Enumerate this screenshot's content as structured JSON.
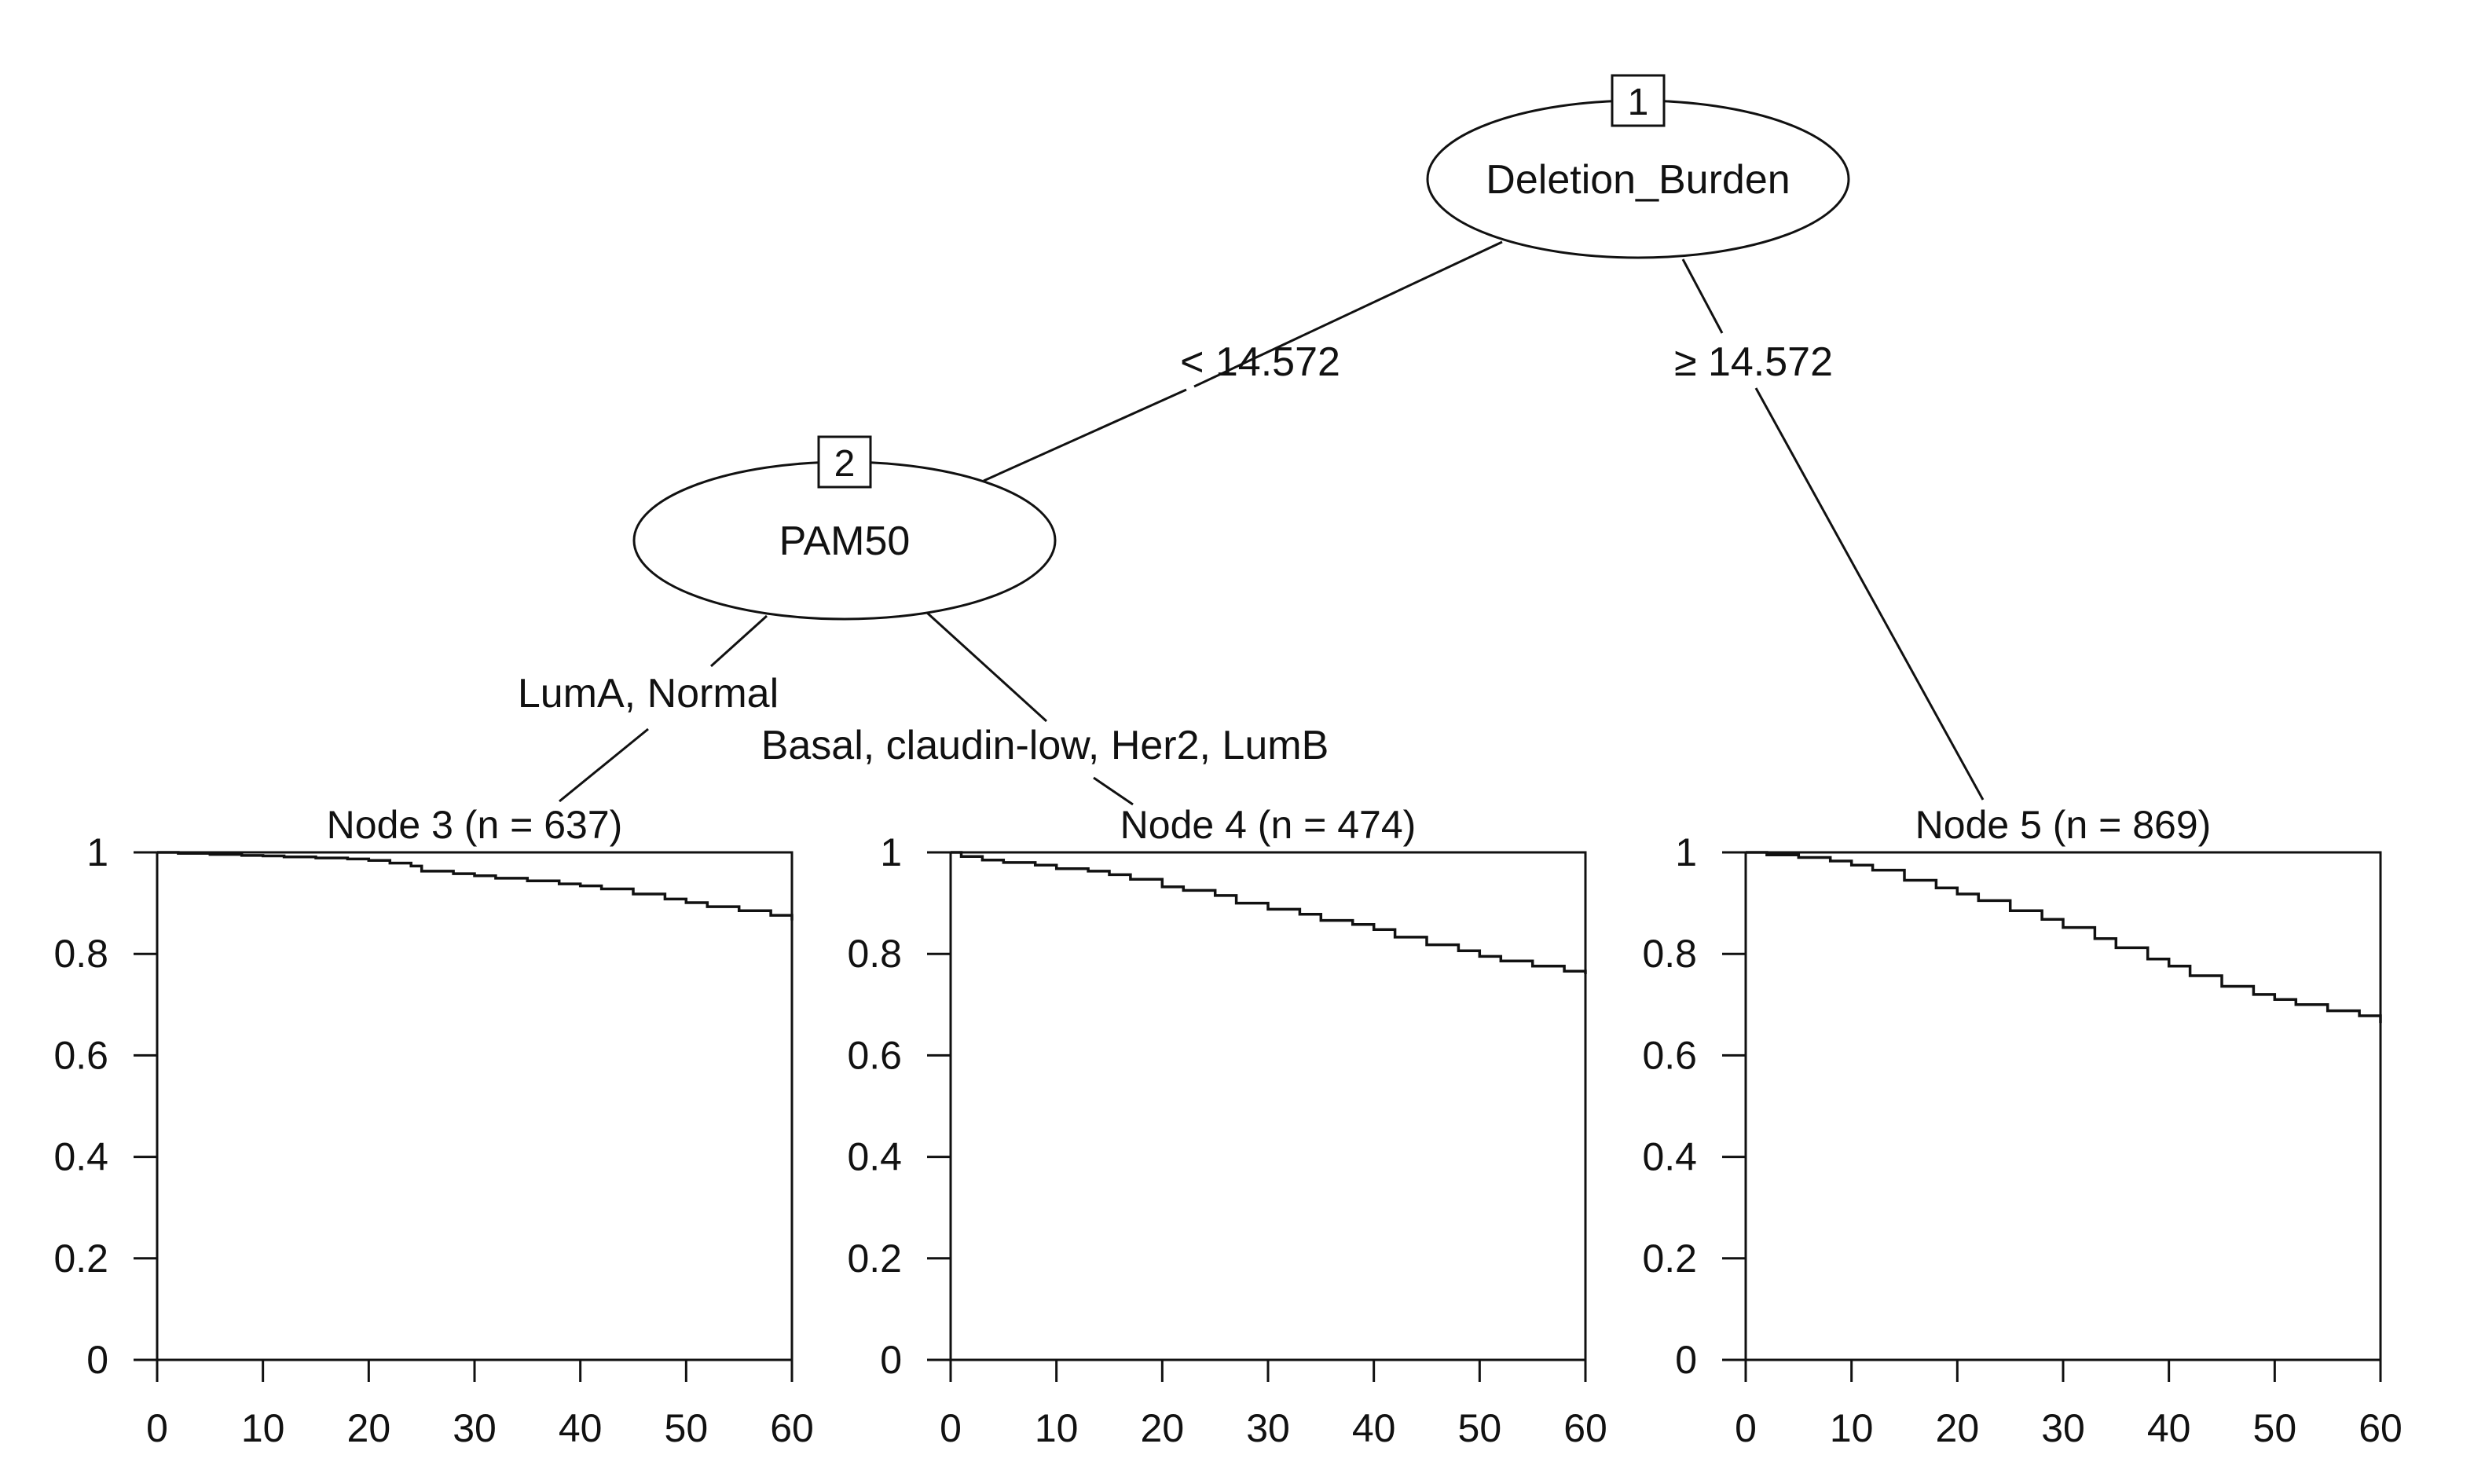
{
  "tree": {
    "nodes": [
      {
        "id": "1",
        "label": "Deletion_Burden"
      },
      {
        "id": "2",
        "label": "PAM50"
      }
    ],
    "edges": [
      {
        "from": "1",
        "to": "2",
        "label": "< 14.572"
      },
      {
        "from": "1",
        "to": "5",
        "label": "≥ 14.572"
      },
      {
        "from": "2",
        "to": "3",
        "label": "LumA, Normal"
      },
      {
        "from": "2",
        "to": "4",
        "label": "Basal, claudin-low, Her2, LumB"
      }
    ]
  },
  "chart_data": [
    {
      "type": "line",
      "title": "Node 3 (n = 637)",
      "xlim": [
        0,
        60
      ],
      "ylim": [
        0,
        1
      ],
      "xticks": [
        0,
        10,
        20,
        30,
        40,
        50,
        60
      ],
      "yticks": [
        0,
        0.2,
        0.4,
        0.6,
        0.8,
        1
      ],
      "ytick_labels": [
        "0",
        "0.2",
        "0.4",
        "0.6",
        "0.8",
        "1"
      ],
      "x": [
        0,
        2,
        5,
        8,
        10,
        12,
        15,
        18,
        20,
        22,
        24,
        25,
        28,
        30,
        32,
        35,
        38,
        40,
        42,
        45,
        48,
        50,
        52,
        55,
        58,
        60
      ],
      "y": [
        1.0,
        0.998,
        0.996,
        0.994,
        0.993,
        0.991,
        0.989,
        0.987,
        0.984,
        0.979,
        0.973,
        0.963,
        0.958,
        0.954,
        0.949,
        0.944,
        0.938,
        0.934,
        0.928,
        0.918,
        0.908,
        0.901,
        0.893,
        0.885,
        0.876,
        0.866
      ]
    },
    {
      "type": "line",
      "title": "Node 4 (n = 474)",
      "xlim": [
        0,
        60
      ],
      "ylim": [
        0,
        1
      ],
      "xticks": [
        0,
        10,
        20,
        30,
        40,
        50,
        60
      ],
      "yticks": [
        0,
        0.2,
        0.4,
        0.6,
        0.8,
        1
      ],
      "ytick_labels": [
        "0",
        "0.2",
        "0.4",
        "0.6",
        "0.8",
        "1"
      ],
      "x": [
        0,
        1,
        3,
        5,
        8,
        10,
        13,
        15,
        17,
        20,
        22,
        25,
        27,
        30,
        33,
        35,
        38,
        40,
        42,
        45,
        48,
        50,
        52,
        55,
        58,
        60
      ],
      "y": [
        1.0,
        0.992,
        0.985,
        0.98,
        0.975,
        0.968,
        0.963,
        0.956,
        0.947,
        0.932,
        0.925,
        0.915,
        0.9,
        0.888,
        0.878,
        0.866,
        0.858,
        0.848,
        0.833,
        0.818,
        0.806,
        0.795,
        0.786,
        0.776,
        0.766,
        0.76
      ]
    },
    {
      "type": "line",
      "title": "Node 5 (n = 869)",
      "xlim": [
        0,
        60
      ],
      "ylim": [
        0,
        1
      ],
      "xticks": [
        0,
        10,
        20,
        30,
        40,
        50,
        60
      ],
      "yticks": [
        0,
        0.2,
        0.4,
        0.6,
        0.8,
        1
      ],
      "ytick_labels": [
        "0",
        "0.2",
        "0.4",
        "0.6",
        "0.8",
        "1"
      ],
      "x": [
        0,
        2,
        5,
        8,
        10,
        12,
        15,
        18,
        20,
        22,
        25,
        28,
        30,
        33,
        35,
        38,
        40,
        42,
        45,
        48,
        50,
        52,
        55,
        58,
        60
      ],
      "y": [
        1.0,
        0.995,
        0.99,
        0.983,
        0.975,
        0.965,
        0.945,
        0.93,
        0.918,
        0.905,
        0.885,
        0.868,
        0.852,
        0.83,
        0.812,
        0.79,
        0.776,
        0.757,
        0.736,
        0.72,
        0.71,
        0.7,
        0.688,
        0.678,
        0.664
      ]
    }
  ]
}
